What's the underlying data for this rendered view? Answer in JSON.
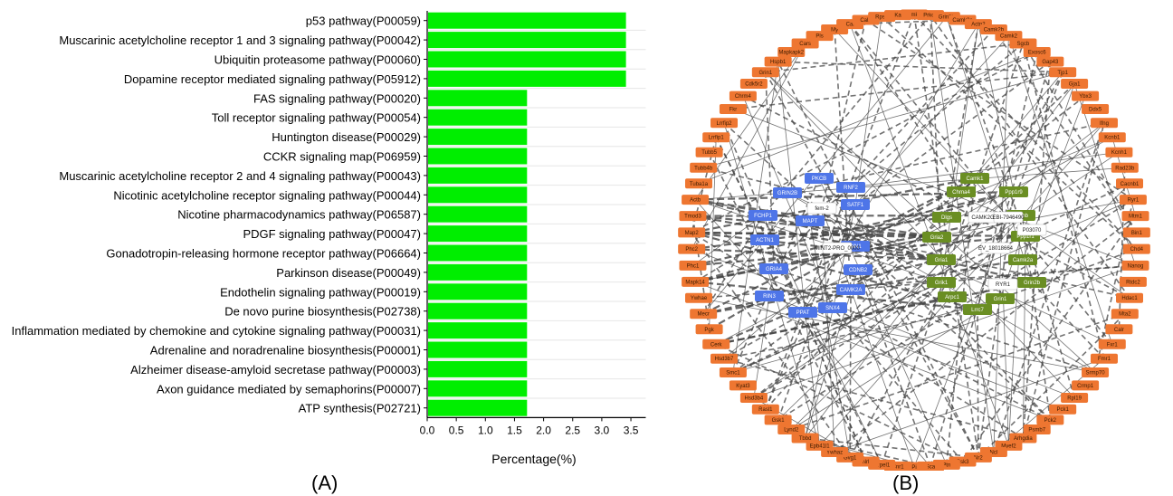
{
  "chart_data": {
    "type": "bar",
    "orientation": "horizontal",
    "categories": [
      "p53 pathway(P00059)",
      "Muscarinic acetylcholine receptor 1 and 3 signaling pathway(P00042)",
      "Ubiquitin proteasome pathway(P00060)",
      "Dopamine receptor mediated signaling pathway(P05912)",
      "FAS signaling pathway(P00020)",
      "Toll receptor signaling pathway(P00054)",
      "Huntington disease(P00029)",
      "CCKR signaling map(P06959)",
      "Muscarinic acetylcholine receptor 2 and 4 signaling pathway(P00043)",
      "Nicotinic acetylcholine receptor signaling pathway(P00044)",
      "Nicotine pharmacodynamics pathway(P06587)",
      "PDGF signaling pathway(P00047)",
      "Gonadotropin-releasing hormone receptor pathway(P06664)",
      "Parkinson disease(P00049)",
      "Endothelin signaling pathway(P00019)",
      "De novo purine biosynthesis(P02738)",
      "Inflammation mediated by chemokine and cytokine signaling pathway(P00031)",
      "Adrenaline and noradrenaline biosynthesis(P00001)",
      "Alzheimer disease-amyloid secretase pathway(P00003)",
      "Axon guidance mediated by semaphorins(P00007)",
      "ATP synthesis(P02721)"
    ],
    "values": [
      3.4,
      3.4,
      3.4,
      3.4,
      1.7,
      1.7,
      1.7,
      1.7,
      1.7,
      1.7,
      1.7,
      1.7,
      1.7,
      1.7,
      1.7,
      1.7,
      1.7,
      1.7,
      1.7,
      1.7,
      1.7
    ],
    "xlabel": "Percentage(%)",
    "xlim": [
      0,
      3.6
    ],
    "xticks": [
      "0.0",
      "0.5",
      "1.0",
      "1.5",
      "2.0",
      "2.5",
      "3.0",
      "3.5"
    ],
    "bar_color": "#00ee00",
    "grid": "horizontal"
  },
  "panels": {
    "a_label": "(A)",
    "b_label": "(B)"
  },
  "network": {
    "colors": {
      "orange": "#ee7631",
      "blue": "#4e75e8",
      "green": "#6a8e23",
      "white": "#ffffff",
      "edge": "#444444"
    },
    "ring_nodes": [
      "Camk2d",
      "Prkca",
      "Grin2b",
      "Camk2a",
      "Actn2",
      "Camk2b",
      "Camk2",
      "Sgcb",
      "Exosc6",
      "Gap43",
      "Tjp1",
      "Gja1",
      "Ybx3",
      "Ddx5",
      "Ifng",
      "Kcnb1",
      "Kcnh1",
      "Rad23b",
      "Cacnb1",
      "Ryr1",
      "Mtm1",
      "Bin1",
      "Chd4",
      "Nanog",
      "Rtdc2",
      "Hdac1",
      "Mta2",
      "Calr",
      "Fxr1",
      "Fmr1",
      "Srmp70",
      "Crmp1",
      "Rpl19",
      "Pck1",
      "Pck2",
      "Psmb7",
      "Arhgdia",
      "Myef2",
      "Ncl",
      "Nr2",
      "Gsk3",
      "Ptn",
      "Sca",
      "Pi",
      "Cnr1",
      "Grpel1",
      "Nrl",
      "Gvg1",
      "Ywhaz",
      "Epb41l1",
      "Tbbd",
      "Lynd2",
      "Gsk1",
      "Rasl1",
      "Hsd3b4",
      "Kyat3",
      "Smc1",
      "Hsd3b7",
      "Cerk",
      "Pgk",
      "Mecr",
      "Ywhae",
      "Mapk14",
      "Phc1",
      "Phc2",
      "Map2",
      "Tmod3",
      "Actb",
      "Tuba1a",
      "Tubb4b",
      "Tubb5",
      "Lrrfip1",
      "Lrrfip2",
      "Fkr",
      "Chrm4",
      "Cdk5r2",
      "Grin1",
      "Hspb1",
      "Mapkapk2",
      "Cars",
      "Pls",
      "My",
      "Cal",
      "Cal2",
      "Rps4",
      "Ka"
    ],
    "blue_nodes": [
      "PKCB",
      "RNF2",
      "GRIN2B",
      "SATF1",
      "FCHP1",
      "MAPT",
      "ACTN1",
      "BIN1",
      "GRIA4",
      "CDNB2",
      "RIN3",
      "CAMK2A",
      "PPAT",
      "SNX4"
    ],
    "green_nodes": [
      "Camk1",
      "Chrna4",
      "Ppp1r9",
      "Dlgs",
      "Rgmb",
      "Gria2",
      "Ppp1r1",
      "Gria1",
      "Camk2a",
      "Grik1",
      "Grin2b",
      "Arpc1",
      "Grin1",
      "Lrrc7"
    ],
    "white_nodes": [
      "fem-2",
      "CAMK2G",
      "EBI-7946490",
      "P03070",
      "MINT2-PRO_0000",
      "EV_18018664",
      "RYR1"
    ]
  }
}
